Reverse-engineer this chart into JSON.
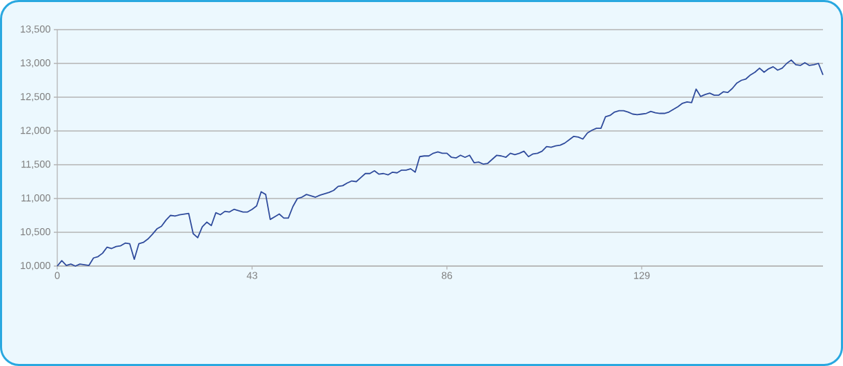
{
  "chart_data": {
    "type": "line",
    "x": [
      0,
      1,
      2,
      3,
      4,
      5,
      6,
      7,
      8,
      9,
      10,
      11,
      12,
      13,
      14,
      15,
      16,
      17,
      18,
      19,
      20,
      21,
      22,
      23,
      24,
      25,
      26,
      27,
      28,
      29,
      30,
      31,
      32,
      33,
      34,
      35,
      36,
      37,
      38,
      39,
      40,
      41,
      42,
      43,
      44,
      45,
      46,
      47,
      48,
      49,
      50,
      51,
      52,
      53,
      54,
      55,
      56,
      57,
      58,
      59,
      60,
      61,
      62,
      63,
      64,
      65,
      66,
      67,
      68,
      69,
      70,
      71,
      72,
      73,
      74,
      75,
      76,
      77,
      78,
      79,
      80,
      81,
      82,
      83,
      84,
      85,
      86,
      87,
      88,
      89,
      90,
      91,
      92,
      93,
      94,
      95,
      96,
      97,
      98,
      99,
      100,
      101,
      102,
      103,
      104,
      105,
      106,
      107,
      108,
      109,
      110,
      111,
      112,
      113,
      114,
      115,
      116,
      117,
      118,
      119,
      120,
      121,
      122,
      123,
      124,
      125,
      126,
      127,
      128,
      129,
      130,
      131,
      132,
      133,
      134,
      135,
      136,
      137,
      138,
      139,
      140,
      141,
      142,
      143,
      144,
      145,
      146,
      147,
      148,
      149,
      150,
      151,
      152,
      153,
      154,
      155,
      156,
      157,
      158,
      159,
      160,
      161,
      162,
      163,
      164,
      165,
      166,
      167,
      168,
      169
    ],
    "values": [
      10000,
      10080,
      10010,
      10030,
      10000,
      10030,
      10020,
      10010,
      10120,
      10140,
      10190,
      10280,
      10260,
      10290,
      10300,
      10340,
      10330,
      10100,
      10330,
      10350,
      10400,
      10470,
      10550,
      10590,
      10680,
      10750,
      10740,
      10760,
      10770,
      10780,
      10480,
      10420,
      10580,
      10650,
      10600,
      10790,
      10760,
      10810,
      10800,
      10840,
      10820,
      10800,
      10800,
      10840,
      10890,
      11100,
      11060,
      10690,
      10730,
      10770,
      10710,
      10710,
      10880,
      11000,
      11020,
      11060,
      11040,
      11020,
      11050,
      11070,
      11090,
      11120,
      11180,
      11190,
      11230,
      11260,
      11250,
      11310,
      11370,
      11370,
      11410,
      11360,
      11370,
      11350,
      11390,
      11380,
      11420,
      11420,
      11440,
      11390,
      11620,
      11630,
      11630,
      11670,
      11690,
      11670,
      11670,
      11610,
      11600,
      11640,
      11610,
      11640,
      11530,
      11540,
      11510,
      11520,
      11580,
      11640,
      11630,
      11610,
      11670,
      11650,
      11670,
      11700,
      11620,
      11660,
      11670,
      11700,
      11770,
      11760,
      11780,
      11790,
      11820,
      11870,
      11920,
      11910,
      11880,
      11970,
      12010,
      12040,
      12040,
      12210,
      12230,
      12280,
      12300,
      12300,
      12280,
      12250,
      12240,
      12250,
      12260,
      12290,
      12270,
      12260,
      12260,
      12280,
      12320,
      12360,
      12410,
      12430,
      12420,
      12620,
      12510,
      12540,
      12560,
      12530,
      12530,
      12580,
      12570,
      12630,
      12710,
      12750,
      12770,
      12830,
      12870,
      12930,
      12870,
      12920,
      12950,
      12900,
      12930,
      13000,
      13050,
      12980,
      12970,
      13010,
      12970,
      12980,
      13000,
      12830
    ],
    "color": "#2f4b9c",
    "line_style": "solid",
    "xlim": [
      0,
      169
    ],
    "ylim": [
      10000,
      13500
    ],
    "xticks": [
      0,
      43,
      86,
      129
    ],
    "yticks": [
      {
        "value": 10000,
        "label": "10,000"
      },
      {
        "value": 10500,
        "label": "10,500"
      },
      {
        "value": 11000,
        "label": "11,000"
      },
      {
        "value": 11500,
        "label": "11,500"
      },
      {
        "value": 12000,
        "label": "12,000"
      },
      {
        "value": 12500,
        "label": "12,500"
      },
      {
        "value": 13000,
        "label": "13,000"
      },
      {
        "value": 13500,
        "label": "13,500"
      }
    ],
    "grid": "y"
  }
}
